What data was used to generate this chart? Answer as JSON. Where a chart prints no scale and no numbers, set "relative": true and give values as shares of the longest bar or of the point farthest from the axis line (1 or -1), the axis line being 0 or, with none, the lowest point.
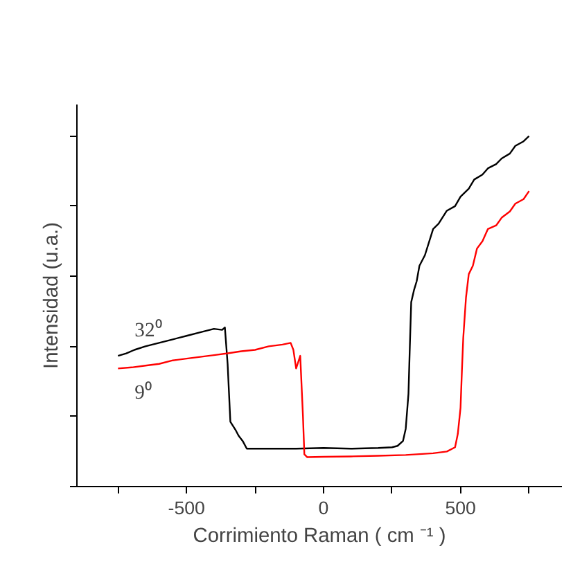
{
  "chart_data": {
    "type": "line",
    "relative": true,
    "xlabel": "Corrimiento Raman ( cm ⁻¹ )",
    "ylabel": "Intensidad (u.a.)",
    "xlim": [
      -900,
      870
    ],
    "xticks": [
      {
        "value": -750,
        "label": null
      },
      -500,
      {
        "value": -250,
        "label": null
      },
      0,
      {
        "value": 250,
        "label": null
      },
      500,
      {
        "value": 750,
        "label": null
      }
    ],
    "tick_labels": "x",
    "grid": false,
    "line_style": "solid",
    "marker": "none",
    "series": [
      {
        "name": "32⁰",
        "color": "#000000",
        "x": [
          -750,
          -720,
          -690,
          -650,
          -600,
          -550,
          -500,
          -450,
          -400,
          -370,
          -360,
          -350,
          -340,
          -320,
          -310,
          -295,
          -280,
          -200,
          -100,
          0,
          100,
          200,
          250,
          270,
          290,
          300,
          310,
          315,
          320,
          330,
          340,
          350,
          370,
          400,
          420,
          450,
          480,
          500,
          530,
          550,
          580,
          600,
          630,
          650,
          680,
          700,
          730,
          750
        ],
        "values": [
          0.373,
          0.38,
          0.39,
          0.4,
          0.41,
          0.42,
          0.43,
          0.44,
          0.45,
          0.447,
          0.454,
          0.35,
          0.185,
          0.16,
          0.145,
          0.13,
          0.108,
          0.108,
          0.108,
          0.11,
          0.108,
          0.11,
          0.112,
          0.116,
          0.13,
          0.165,
          0.265,
          0.4,
          0.526,
          0.56,
          0.586,
          0.63,
          0.66,
          0.735,
          0.75,
          0.787,
          0.8,
          0.827,
          0.85,
          0.876,
          0.89,
          0.908,
          0.92,
          0.936,
          0.95,
          0.972,
          0.985,
          1.0
        ]
      },
      {
        "name": "9⁰",
        "color": "#ff0000",
        "x": [
          -750,
          -700,
          -650,
          -600,
          -550,
          -500,
          -450,
          -400,
          -350,
          -300,
          -250,
          -200,
          -150,
          -120,
          -110,
          -100,
          -85,
          -75,
          -70,
          -60,
          0,
          100,
          200,
          300,
          400,
          450,
          480,
          490,
          500,
          505,
          510,
          520,
          530,
          545,
          560,
          580,
          600,
          630,
          650,
          680,
          700,
          730,
          750
        ],
        "values": [
          0.337,
          0.34,
          0.345,
          0.35,
          0.36,
          0.365,
          0.37,
          0.375,
          0.38,
          0.386,
          0.39,
          0.4,
          0.405,
          0.41,
          0.39,
          0.337,
          0.373,
          0.2,
          0.092,
          0.084,
          0.085,
          0.086,
          0.088,
          0.09,
          0.095,
          0.1,
          0.112,
          0.15,
          0.225,
          0.33,
          0.425,
          0.54,
          0.606,
          0.63,
          0.679,
          0.7,
          0.735,
          0.745,
          0.767,
          0.785,
          0.807,
          0.82,
          0.843
        ]
      }
    ]
  }
}
